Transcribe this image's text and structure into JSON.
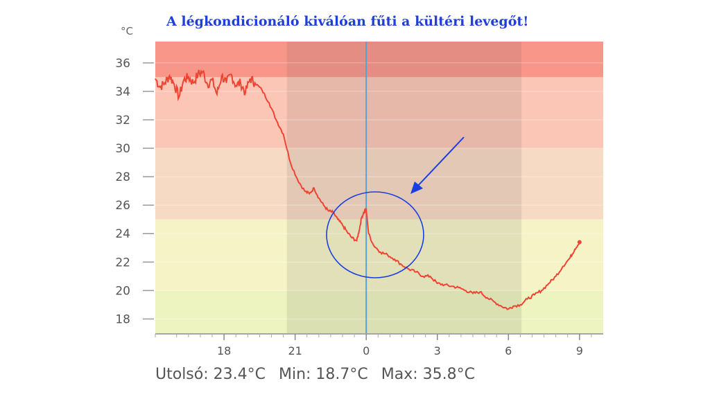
{
  "chart_data": {
    "type": "line",
    "title": "A légkondicionáló kiválóan fűti a kültéri levegőt!",
    "unit": "°C",
    "ylim": [
      17,
      37.5
    ],
    "yticks": [
      18,
      20,
      22,
      24,
      26,
      28,
      30,
      32,
      34,
      36
    ],
    "xlim": [
      15.1,
      34.0
    ],
    "x_ticks": [
      {
        "value": 18,
        "label": "18"
      },
      {
        "value": 21,
        "label": "21"
      },
      {
        "value": 24,
        "label": "0"
      },
      {
        "value": 27,
        "label": "3"
      },
      {
        "value": 30,
        "label": "6"
      },
      {
        "value": 33,
        "label": "9"
      }
    ],
    "minor_x_ticks": [
      15.1,
      16,
      16.5,
      17,
      17.5,
      18.5,
      19,
      19.5,
      20,
      20.5,
      21.5,
      22,
      22.5,
      23,
      23.5,
      24.5,
      25,
      25.5,
      26,
      26.5,
      27.5,
      28,
      28.5,
      29,
      29.5,
      30.5,
      31,
      31.5,
      32,
      32.5,
      33.5
    ],
    "bands": [
      {
        "from": 17,
        "to": 20,
        "color": "#edf4c0"
      },
      {
        "from": 20,
        "to": 25,
        "color": "#f6f4c6"
      },
      {
        "from": 25,
        "to": 30,
        "color": "#f7dac3"
      },
      {
        "from": 30,
        "to": 35,
        "color": "#fbc6b6"
      },
      {
        "from": 35,
        "to": 37.5,
        "color": "#f9968a"
      }
    ],
    "night_shade": {
      "from": 20.65,
      "to": 30.55
    },
    "now_line": 24,
    "series": [
      {
        "color": "#ee4433",
        "x": [
          15.1,
          15.3,
          15.5,
          15.7,
          15.9,
          16.1,
          16.3,
          16.5,
          16.7,
          16.9,
          17.1,
          17.3,
          17.5,
          17.7,
          17.9,
          18.1,
          18.3,
          18.5,
          18.7,
          18.9,
          19.1,
          19.3,
          19.6,
          19.9,
          20.2,
          20.5,
          20.8,
          21.1,
          21.4,
          21.6,
          21.8,
          22.0,
          22.2,
          22.4,
          22.6,
          22.8,
          23.0,
          23.2,
          23.4,
          23.6,
          23.7,
          23.8,
          23.9,
          24.0,
          24.1,
          24.3,
          24.6,
          24.9,
          25.2,
          25.5,
          25.8,
          26.1,
          26.4,
          26.7,
          27.0,
          27.3,
          27.6,
          27.9,
          28.2,
          28.5,
          28.8,
          29.1,
          29.4,
          29.7,
          30.0,
          30.2,
          30.5,
          30.8,
          31.1,
          31.4,
          31.7,
          32.0,
          32.3,
          32.6,
          32.8,
          33.0
        ],
        "y": [
          34.9,
          34.3,
          34.6,
          35.1,
          34.5,
          33.6,
          34.8,
          35.0,
          34.6,
          35.2,
          35.4,
          34.5,
          34.8,
          33.8,
          35.1,
          34.6,
          35.2,
          34.4,
          34.6,
          33.9,
          34.9,
          34.6,
          34.1,
          33.2,
          32.0,
          31.0,
          29.0,
          27.8,
          27.0,
          26.8,
          27.2,
          26.5,
          26.0,
          25.6,
          25.5,
          25.0,
          24.6,
          24.1,
          23.7,
          23.5,
          24.2,
          25.1,
          25.5,
          25.7,
          24.0,
          23.2,
          22.7,
          22.5,
          22.2,
          21.8,
          21.5,
          21.3,
          21.0,
          21.0,
          20.5,
          20.4,
          20.3,
          20.2,
          20.0,
          19.8,
          19.9,
          19.5,
          19.2,
          18.9,
          18.7,
          18.9,
          19.0,
          19.4,
          19.7,
          20.0,
          20.5,
          21.0,
          21.7,
          22.3,
          22.9,
          23.4
        ]
      }
    ]
  },
  "annotation": {
    "color": "#1a3fe0"
  },
  "stats": {
    "last": "Utolsó: 23.4°C",
    "min": "Min: 18.7°C",
    "max": "Max: 35.8°C"
  }
}
